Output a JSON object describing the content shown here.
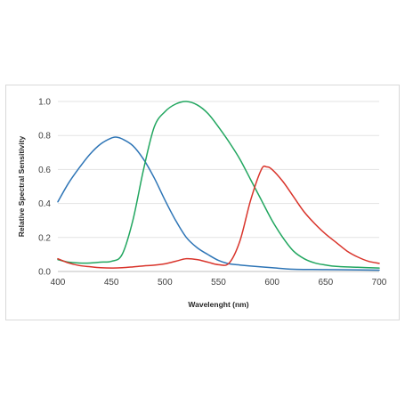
{
  "chart_data": {
    "type": "line",
    "title": "",
    "xlabel": "Wavelenght (nm)",
    "ylabel": "Relative Spectral Sensitivity",
    "xlim": [
      400,
      700
    ],
    "ylim": [
      0,
      1.0
    ],
    "xticks": [
      "400",
      "450",
      "500",
      "550",
      "600",
      "650",
      "700"
    ],
    "yticks": [
      "0.0",
      "0.2",
      "0.4",
      "0.6",
      "0.8",
      "1.0"
    ],
    "grid": "horizontal",
    "legend": "none",
    "series": [
      {
        "color": "#2e75b6",
        "x": [
          400,
          410,
          420,
          430,
          440,
          450,
          455,
          460,
          470,
          480,
          490,
          500,
          510,
          520,
          530,
          540,
          550,
          560,
          570,
          580,
          600,
          620,
          650,
          700
        ],
        "y": [
          0.41,
          0.52,
          0.61,
          0.69,
          0.75,
          0.785,
          0.79,
          0.78,
          0.74,
          0.66,
          0.55,
          0.42,
          0.3,
          0.2,
          0.14,
          0.1,
          0.065,
          0.045,
          0.038,
          0.032,
          0.022,
          0.013,
          0.011,
          0.008
        ]
      },
      {
        "color": "#21a65f",
        "x": [
          400,
          410,
          420,
          430,
          440,
          450,
          460,
          470,
          480,
          490,
          500,
          510,
          520,
          530,
          540,
          550,
          560,
          570,
          580,
          590,
          600,
          610,
          620,
          630,
          640,
          650,
          660,
          680,
          700
        ],
        "y": [
          0.07,
          0.055,
          0.05,
          0.05,
          0.055,
          0.06,
          0.1,
          0.3,
          0.6,
          0.85,
          0.94,
          0.985,
          1.0,
          0.98,
          0.93,
          0.85,
          0.76,
          0.66,
          0.54,
          0.42,
          0.3,
          0.2,
          0.12,
          0.075,
          0.05,
          0.038,
          0.03,
          0.025,
          0.02
        ]
      },
      {
        "color": "#d9342b",
        "x": [
          400,
          410,
          420,
          430,
          440,
          450,
          460,
          470,
          480,
          490,
          500,
          510,
          520,
          530,
          540,
          550,
          560,
          570,
          580,
          590,
          595,
          600,
          610,
          620,
          630,
          640,
          650,
          660,
          670,
          680,
          690,
          700
        ],
        "y": [
          0.075,
          0.05,
          0.035,
          0.028,
          0.022,
          0.02,
          0.022,
          0.027,
          0.033,
          0.037,
          0.045,
          0.06,
          0.075,
          0.07,
          0.055,
          0.04,
          0.05,
          0.18,
          0.42,
          0.6,
          0.615,
          0.6,
          0.53,
          0.44,
          0.35,
          0.28,
          0.22,
          0.17,
          0.12,
          0.085,
          0.06,
          0.048
        ]
      }
    ]
  }
}
